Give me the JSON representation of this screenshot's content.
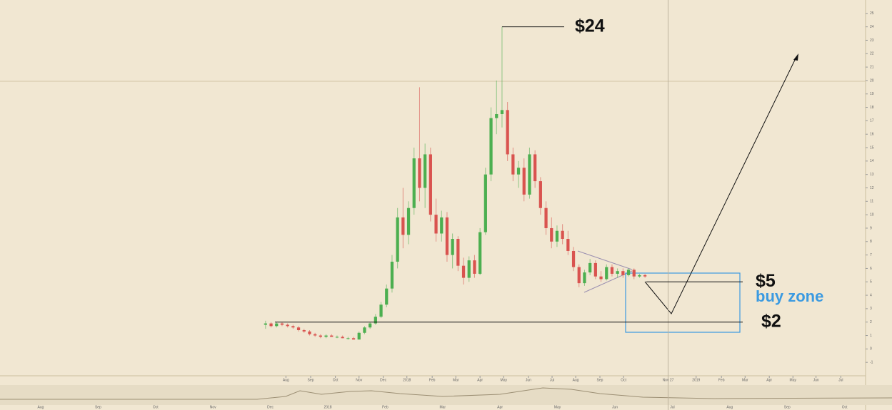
{
  "chart_data": {
    "type": "candlestick",
    "open": [
      1.8,
      1.9,
      1.7,
      1.9,
      1.8,
      1.7,
      1.6,
      1.4,
      1.3,
      1.1,
      1.0,
      0.9,
      1.0,
      0.9,
      0.9,
      0.8,
      0.8,
      0.7,
      1.2,
      1.6,
      1.9,
      2.4,
      3.3,
      4.5,
      6.5,
      9.8,
      8.5,
      10.5,
      14.2,
      12.0,
      14.5,
      10.0,
      8.6,
      9.8,
      7.0,
      8.2,
      6.2,
      5.3,
      6.6,
      5.6,
      8.7,
      13.0,
      17.2,
      17.5,
      17.8,
      14.5,
      13.0,
      13.5,
      11.5,
      14.5,
      12.5,
      10.5,
      9.0,
      8.0,
      8.8,
      8.2,
      7.3,
      6.1,
      4.9,
      5.7,
      6.4,
      5.4,
      5.2,
      6.1,
      5.6,
      5.8,
      5.5,
      5.9,
      5.4,
      5.5
    ],
    "high": [
      2.1,
      2.0,
      2.0,
      2.0,
      1.9,
      1.8,
      1.7,
      1.5,
      1.4,
      1.2,
      1.1,
      1.1,
      1.1,
      1.0,
      1.0,
      0.9,
      0.9,
      1.3,
      1.7,
      2.0,
      2.6,
      3.5,
      4.8,
      7.0,
      10.5,
      12.0,
      11.0,
      15.0,
      19.5,
      15.3,
      15.0,
      11.2,
      10.3,
      10.2,
      8.6,
      8.4,
      6.8,
      6.9,
      7.0,
      9.0,
      13.5,
      18.0,
      20.0,
      24.0,
      18.4,
      15.0,
      14.0,
      14.2,
      15.0,
      14.8,
      12.8,
      11.0,
      9.8,
      9.2,
      9.3,
      8.8,
      7.6,
      6.3,
      5.9,
      6.7,
      6.6,
      5.8,
      6.3,
      6.3,
      6.0,
      6.0,
      6.0,
      6.0,
      5.6,
      5.6
    ],
    "low": [
      1.5,
      1.6,
      1.6,
      1.7,
      1.6,
      1.5,
      1.3,
      1.2,
      1.0,
      0.9,
      0.8,
      0.8,
      0.9,
      0.8,
      0.8,
      0.7,
      0.7,
      0.7,
      1.1,
      1.5,
      1.8,
      2.3,
      3.1,
      4.2,
      6.0,
      7.5,
      7.8,
      10.0,
      11.0,
      10.5,
      9.5,
      8.0,
      8.0,
      6.5,
      6.0,
      5.8,
      4.8,
      5.0,
      5.3,
      5.5,
      8.5,
      12.5,
      16.0,
      16.5,
      14.0,
      12.5,
      12.0,
      11.0,
      11.2,
      12.0,
      10.0,
      8.5,
      7.5,
      7.6,
      7.8,
      7.0,
      5.8,
      4.6,
      4.7,
      5.5,
      5.2,
      5.0,
      5.1,
      5.4,
      5.3,
      5.3,
      5.4,
      5.2,
      5.3,
      5.3
    ],
    "close": [
      1.9,
      1.7,
      1.9,
      1.8,
      1.7,
      1.6,
      1.4,
      1.3,
      1.1,
      1.0,
      0.9,
      1.0,
      0.9,
      0.9,
      0.8,
      0.8,
      0.7,
      1.2,
      1.6,
      1.9,
      2.4,
      3.3,
      4.5,
      6.5,
      9.8,
      8.5,
      10.5,
      14.2,
      12.0,
      14.5,
      10.0,
      8.6,
      9.8,
      7.0,
      8.2,
      6.2,
      5.3,
      6.6,
      5.6,
      8.7,
      13.0,
      17.2,
      17.5,
      17.8,
      14.5,
      13.0,
      13.5,
      11.5,
      14.5,
      12.5,
      10.5,
      9.0,
      8.0,
      8.8,
      8.2,
      7.3,
      6.1,
      4.9,
      5.7,
      6.4,
      5.4,
      5.2,
      6.1,
      5.6,
      5.8,
      5.5,
      5.9,
      5.4,
      5.5,
      5.4
    ],
    "up_color": "#4caf50",
    "down_color": "#d9534f",
    "xlim": [
      0,
      110
    ],
    "xticks": [
      {
        "value": 4.2,
        "label": "Aug"
      },
      {
        "value": 8.7,
        "label": "Sep"
      },
      {
        "value": 13.2,
        "label": "Oct"
      },
      {
        "value": 17.5,
        "label": "Nov"
      },
      {
        "value": 21.9,
        "label": "Dec"
      },
      {
        "value": 26.2,
        "label": "2018"
      },
      {
        "value": 30.8,
        "label": "Feb"
      },
      {
        "value": 35.1,
        "label": "Mar"
      },
      {
        "value": 39.5,
        "label": "Apr"
      },
      {
        "value": 43.8,
        "label": "May"
      },
      {
        "value": 48.3,
        "label": "Jun"
      },
      {
        "value": 52.6,
        "label": "Jul"
      },
      {
        "value": 56.9,
        "label": "Aug"
      },
      {
        "value": 61.3,
        "label": "Sep"
      },
      {
        "value": 65.6,
        "label": "Oct"
      },
      {
        "value": 78.8,
        "label": "2019"
      },
      {
        "value": 83.4,
        "label": "Feb"
      },
      {
        "value": 87.7,
        "label": "Mar"
      },
      {
        "value": 92.1,
        "label": "Apr"
      },
      {
        "value": 96.4,
        "label": "May"
      },
      {
        "value": 100.6,
        "label": "Jun"
      },
      {
        "value": 105.1,
        "label": "Jul"
      }
    ],
    "cursor": {
      "value": 73.7,
      "label": "Nov 27"
    },
    "ylim": [
      -2,
      26
    ],
    "yticks": [
      -1,
      0,
      1,
      2,
      3,
      4,
      5,
      6,
      7,
      8,
      9,
      10,
      11,
      12,
      13,
      14,
      15,
      16,
      17,
      18,
      19,
      20,
      21,
      22,
      23,
      24,
      25
    ],
    "levels": [
      {
        "label": "$24",
        "value": 24
      },
      {
        "label": "$5",
        "value": 5
      },
      {
        "label": "$2",
        "value": 2
      }
    ],
    "zone_label": "buy zone",
    "lower_axis_labels": [
      "Aug",
      "Sep",
      "Oct",
      "Nov",
      "Dec",
      "2018",
      "Feb",
      "Mar",
      "Apr",
      "May",
      "Jun",
      "Jul",
      "Aug",
      "Sep",
      "Oct"
    ]
  }
}
